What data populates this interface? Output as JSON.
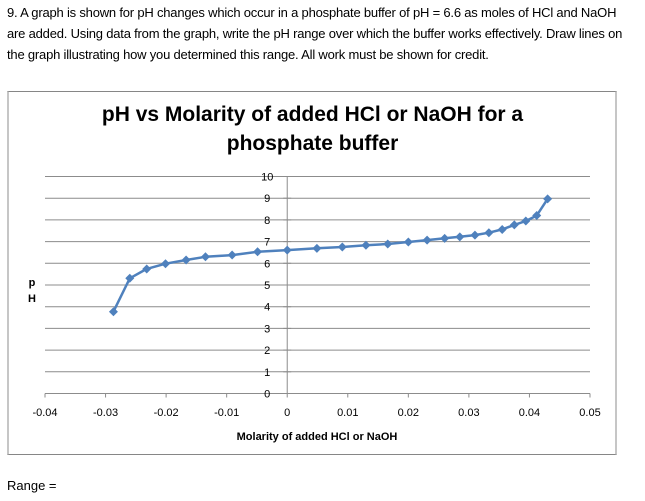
{
  "question": {
    "text": "9.  A graph is shown for pH changes which occur in a phosphate buffer of pH = 6.6 as moles of HCl and NaOH are added.  Using data from the graph, write the pH range over which the buffer works effectively.  Draw lines on the graph illustrating how you determined this range.  All work must be shown for credit."
  },
  "answer": {
    "range_label": "Range ="
  },
  "chart_data": {
    "type": "line",
    "title": "pH vs Molarity of added HCl or NaOH for a phosphate buffer",
    "title_lines": [
      "pH vs Molarity of added HCl or NaOH for a",
      "phosphate buffer"
    ],
    "xlabel": "Molarity of added HCl or NaOH",
    "ylabel": "pH",
    "ylabel_lines": [
      "p",
      "H"
    ],
    "xlim": [
      -0.04,
      0.05
    ],
    "ylim": [
      0,
      10
    ],
    "x_ticks": [
      "-0.04",
      "-0.03",
      "-0.02",
      "-0.01",
      "0",
      "0.01",
      "0.02",
      "0.03",
      "0.04",
      "0.05"
    ],
    "y_ticks": [
      "0",
      "1",
      "2",
      "3",
      "4",
      "5",
      "6",
      "7",
      "8",
      "9",
      "10"
    ],
    "grid": "horizontal",
    "legend": null,
    "marker": "diamond",
    "series_color": "#4F81BD",
    "series": [
      {
        "name": "pH",
        "x": [
          -0.0287,
          -0.026,
          -0.0232,
          -0.0201,
          -0.0167,
          -0.0135,
          -0.0091,
          -0.0049,
          0.0,
          0.0049,
          0.0091,
          0.013,
          0.0166,
          0.02,
          0.0231,
          0.026,
          0.0285,
          0.031,
          0.0333,
          0.0355,
          0.0375,
          0.0394,
          0.0412,
          0.043
        ],
        "y": [
          3.77,
          5.31,
          5.74,
          5.98,
          6.15,
          6.3,
          6.38,
          6.53,
          6.61,
          6.69,
          6.75,
          6.83,
          6.89,
          6.98,
          7.07,
          7.15,
          7.22,
          7.3,
          7.41,
          7.56,
          7.77,
          7.95,
          8.2,
          8.97
        ]
      }
    ]
  }
}
